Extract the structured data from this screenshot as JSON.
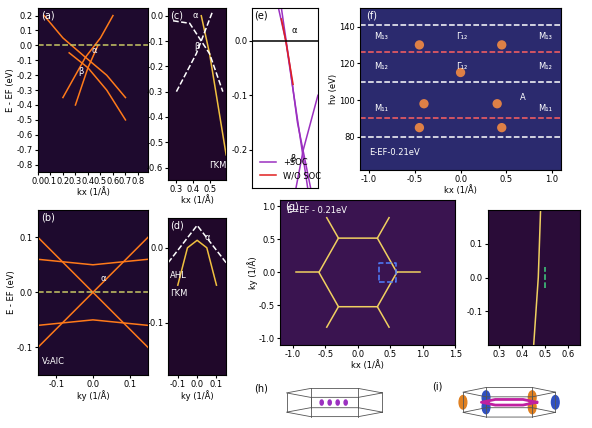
{
  "chart_data": [
    {
      "type": "line",
      "title": "(a)",
      "xlabel": "kx (1/Å)",
      "ylabel": "E - EF (eV)",
      "xlim": [
        0,
        0.88
      ],
      "ylim": [
        -0.85,
        0.25
      ],
      "xticks": [
        0.0,
        0.1,
        0.2,
        0.3,
        0.4,
        0.5,
        0.6,
        0.7,
        0.8
      ],
      "yticks": [
        -0.8,
        -0.7,
        -0.6,
        -0.5,
        -0.4,
        -0.3,
        -0.2,
        -0.1,
        0.0,
        0.1,
        0.2
      ],
      "series": [
        {
          "x": [
            0.05,
            0.2,
            0.38,
            0.55,
            0.7
          ],
          "values": [
            0.2,
            0.05,
            -0.08,
            -0.2,
            -0.35
          ],
          "color": "#ff7a1a",
          "line_style": "solid"
        },
        {
          "x": [
            0.2,
            0.38,
            0.5,
            0.6
          ],
          "values": [
            -0.35,
            -0.08,
            0.05,
            0.2
          ],
          "color": "#ff7a1a",
          "line_style": "solid"
        },
        {
          "x": [
            0.25,
            0.4,
            0.55,
            0.7
          ],
          "values": [
            -0.05,
            -0.15,
            -0.3,
            -0.5
          ],
          "color": "#ff7a1a",
          "line_style": "solid"
        },
        {
          "x": [
            0.3,
            0.4,
            0.48
          ],
          "values": [
            -0.4,
            -0.15,
            0.0
          ],
          "color": "#ff7a1a",
          "line_style": "solid"
        },
        {
          "x": [
            0.0,
            0.88
          ],
          "values": [
            0.0,
            0.0
          ],
          "color": "#c8c864",
          "line_style": "dashed"
        }
      ],
      "annotations": [
        {
          "text": "α",
          "x": 0.43,
          "y": -0.05
        },
        {
          "text": "β",
          "x": 0.32,
          "y": -0.19
        }
      ]
    },
    {
      "type": "line",
      "title": "(b)",
      "xlabel": "ky (1/Å)",
      "ylabel": "E - EF (eV)",
      "xlim": [
        -0.15,
        0.15
      ],
      "ylim": [
        -0.15,
        0.15
      ],
      "xticks": [
        -0.1,
        0.0,
        0.1
      ],
      "yticks": [
        -0.1,
        0.0,
        0.1
      ],
      "series": [
        {
          "x": [
            -0.15,
            0.0,
            0.15
          ],
          "values": [
            0.1,
            0.0,
            -0.1
          ],
          "color": "#ff7a1a",
          "line_style": "solid"
        },
        {
          "x": [
            -0.15,
            0.0,
            0.15
          ],
          "values": [
            -0.1,
            0.0,
            0.1
          ],
          "color": "#ff7a1a",
          "line_style": "solid"
        },
        {
          "x": [
            -0.15,
            0.0,
            0.15
          ],
          "values": [
            0.06,
            0.05,
            0.06
          ],
          "color": "#ff7a1a",
          "line_style": "solid"
        },
        {
          "x": [
            -0.15,
            0.0,
            0.15
          ],
          "values": [
            -0.06,
            -0.05,
            -0.06
          ],
          "color": "#ff7a1a",
          "line_style": "solid"
        },
        {
          "x": [
            -0.15,
            0.15
          ],
          "values": [
            0.0,
            0.0
          ],
          "color": "#c8c864",
          "line_style": "dashed"
        }
      ],
      "annotations": [
        {
          "text": "α",
          "x": 0.02,
          "y": 0.02
        },
        {
          "text": "V₂AlC",
          "x": -0.14,
          "y": -0.13
        }
      ]
    },
    {
      "type": "line",
      "title": "(c)",
      "xlabel": "kx (1/Å)",
      "xlim": [
        0.25,
        0.6
      ],
      "ylim": [
        -0.65,
        0.03
      ],
      "xticks": [
        0.3,
        0.4,
        0.5
      ],
      "yticks": [
        0.0,
        -0.1,
        -0.2,
        -0.3,
        -0.4,
        -0.5,
        -0.6
      ],
      "series": [
        {
          "x": [
            0.45,
            0.5,
            0.55,
            0.6
          ],
          "values": [
            0.0,
            -0.15,
            -0.35,
            -0.55
          ],
          "color": "#f0c040",
          "line_style": "solid"
        },
        {
          "x": [
            0.28,
            0.38,
            0.5,
            0.58
          ],
          "values": [
            -0.02,
            -0.03,
            -0.15,
            -0.3
          ],
          "color": "#ffffff",
          "line_style": "dashed"
        },
        {
          "x": [
            0.3,
            0.42,
            0.52
          ],
          "values": [
            -0.3,
            -0.15,
            0.02
          ],
          "color": "#ffffff",
          "line_style": "dashed"
        }
      ],
      "annotations": [
        {
          "text": "α",
          "x": 0.4,
          "y": -0.01
        },
        {
          "text": "β",
          "x": 0.41,
          "y": -0.13
        },
        {
          "text": "ΓKM",
          "x": 0.5,
          "y": -0.6
        }
      ]
    },
    {
      "type": "line",
      "title": "(d)",
      "xlabel": "ky (1/Å)",
      "xlim": [
        -0.15,
        0.15
      ],
      "ylim": [
        -0.17,
        0.04
      ],
      "xticks": [
        -0.1,
        0.0,
        0.1
      ],
      "yticks": [
        0.0,
        -0.1
      ],
      "series": [
        {
          "x": [
            -0.1,
            -0.05,
            0.0,
            0.05,
            0.1
          ],
          "values": [
            -0.05,
            0.0,
            0.01,
            0.0,
            -0.05
          ],
          "color": "#f0c040",
          "line_style": "solid"
        },
        {
          "x": [
            -0.15,
            0.0,
            0.15
          ],
          "values": [
            -0.02,
            0.03,
            -0.02
          ],
          "color": "#ffffff",
          "line_style": "dashed"
        }
      ],
      "annotations": [
        {
          "text": "α",
          "x": 0.04,
          "y": 0.01
        },
        {
          "text": "AHL",
          "x": -0.14,
          "y": -0.04
        },
        {
          "text": "ΓKM",
          "x": -0.14,
          "y": -0.065
        }
      ]
    },
    {
      "type": "line",
      "title": "(e)",
      "tick_labels": "y",
      "legend": "lower left",
      "xlim": [
        -0.2,
        0.25
      ],
      "ylim": [
        -0.27,
        0.06
      ],
      "yticks": [
        0.0,
        -0.1,
        -0.2
      ],
      "series": [
        {
          "name": "+SOC",
          "x": [
            -0.02,
            0.03,
            0.08,
            0.13,
            0.18
          ],
          "values": [
            0.06,
            0.0,
            -0.09,
            -0.18,
            -0.27
          ],
          "color": "#9b30c0",
          "line_style": "solid"
        },
        {
          "x": [
            0.0,
            0.06,
            0.11,
            0.2
          ],
          "values": [
            0.06,
            -0.05,
            -0.15,
            -0.27
          ],
          "color": "#9b30c0",
          "line_style": "solid"
        },
        {
          "x": [
            0.1,
            0.15,
            0.25
          ],
          "values": [
            -0.27,
            -0.2,
            -0.1
          ],
          "color": "#9b30c0",
          "line_style": "solid"
        },
        {
          "name": "W/O SOC",
          "x": [
            0.0,
            0.03,
            0.08
          ],
          "values": [
            0.04,
            0.0,
            -0.08
          ],
          "color": "#e02020",
          "line_style": "solid"
        },
        {
          "x": [
            -0.2,
            0.25
          ],
          "values": [
            0.0,
            0.0
          ],
          "color": "#000000",
          "line_style": "solid"
        }
      ],
      "annotations": [
        {
          "text": "α",
          "x": 0.07,
          "y": 0.015
        },
        {
          "text": "β",
          "x": 0.06,
          "y": -0.22
        }
      ]
    },
    {
      "type": "scatter",
      "title": "(f)",
      "xlabel": "kx (1/Å)",
      "ylabel": "hν (eV)",
      "xlim": [
        -1.1,
        1.1
      ],
      "ylim": [
        62,
        150
      ],
      "xticks": [
        -1.0,
        -0.5,
        0.0,
        0.5,
        1.0
      ],
      "yticks": [
        80,
        100,
        120,
        140
      ],
      "series": [
        {
          "type": "scatter",
          "x": [
            -0.45,
            0.45,
            -0.4,
            0.4,
            -0.45,
            0.45,
            0.0
          ],
          "values": [
            130,
            130,
            98,
            98,
            85,
            85,
            115
          ],
          "color": "#ff9040"
        },
        {
          "x": [
            -1.1,
            1.1
          ],
          "values": [
            141,
            141
          ],
          "color": "#ffffff",
          "line_style": "dashed"
        },
        {
          "x": [
            -1.1,
            1.1
          ],
          "values": [
            126,
            126
          ],
          "color": "#ff6060",
          "line_style": "dashed"
        },
        {
          "x": [
            -1.1,
            1.1
          ],
          "values": [
            110,
            110
          ],
          "color": "#ffffff",
          "line_style": "dashed"
        },
        {
          "x": [
            -1.1,
            1.1
          ],
          "values": [
            90,
            90
          ],
          "color": "#ff6060",
          "line_style": "dashed"
        },
        {
          "x": [
            -1.1,
            1.1
          ],
          "values": [
            80,
            80
          ],
          "color": "#ffffff",
          "line_style": "dashed"
        }
      ],
      "annotations": [
        {
          "text": "M₁₃",
          "x": -0.95,
          "y": 133
        },
        {
          "text": "Γ₁₂",
          "x": -0.05,
          "y": 133
        },
        {
          "text": "M₁₃",
          "x": 0.85,
          "y": 133
        },
        {
          "text": "M₁₂",
          "x": -0.95,
          "y": 117
        },
        {
          "text": "Γ₁₂",
          "x": -0.05,
          "y": 117
        },
        {
          "text": "M₁₂",
          "x": 0.85,
          "y": 117
        },
        {
          "text": "M₁₁",
          "x": -0.95,
          "y": 94
        },
        {
          "text": "M₁₁",
          "x": 0.85,
          "y": 94
        },
        {
          "text": "A",
          "x": 0.65,
          "y": 100
        },
        {
          "text": "E-EF-0.21eV",
          "x": -1.0,
          "y": 70
        }
      ]
    },
    {
      "type": "line",
      "title": "(g)",
      "xlabel": "kx (1/Å)",
      "ylabel": "ky (1/Å)",
      "xlim": [
        -1.2,
        1.5
      ],
      "ylim": [
        -1.1,
        1.1
      ],
      "xticks": [
        -1.0,
        -0.5,
        0.0,
        0.5,
        1.0,
        1.5
      ],
      "yticks": [
        -1.0,
        -0.5,
        0.0,
        0.5,
        1.0
      ],
      "series": [
        {
          "x": [
            0.6,
            0.3,
            -0.3,
            -0.6,
            -0.3,
            0.3,
            0.6
          ],
          "values": [
            0.0,
            0.52,
            0.52,
            0.0,
            -0.52,
            -0.52,
            0.0
          ],
          "color": "#f0d060",
          "line_style": "solid"
        },
        {
          "x": [
            0.6,
            0.95
          ],
          "values": [
            0.0,
            0.0
          ],
          "color": "#f0d060",
          "line_style": "solid"
        },
        {
          "x": [
            -0.6,
            -0.95
          ],
          "values": [
            0.0,
            0.0
          ],
          "color": "#f0d060",
          "line_style": "solid"
        },
        {
          "x": [
            0.3,
            0.48
          ],
          "values": [
            0.52,
            0.83
          ],
          "color": "#f0d060",
          "line_style": "solid"
        },
        {
          "x": [
            -0.3,
            -0.48
          ],
          "values": [
            0.52,
            0.83
          ],
          "color": "#f0d060",
          "line_style": "solid"
        },
        {
          "x": [
            0.3,
            0.48
          ],
          "values": [
            -0.52,
            -0.83
          ],
          "color": "#f0d060",
          "line_style": "solid"
        },
        {
          "x": [
            -0.3,
            -0.48
          ],
          "values": [
            -0.52,
            -0.83
          ],
          "color": "#f0d060",
          "line_style": "solid"
        },
        {
          "x": [
            0.33,
            0.58,
            0.58,
            0.33,
            0.33
          ],
          "values": [
            -0.15,
            -0.15,
            0.15,
            0.15,
            -0.15
          ],
          "color": "#5080ff",
          "line_style": "dashed"
        }
      ],
      "annotations": [
        {
          "text": "E=EF - 0.21eV",
          "x": -1.1,
          "y": 0.9
        }
      ]
    },
    {
      "type": "line",
      "xlim": [
        0.25,
        0.65
      ],
      "ylim": [
        -0.2,
        0.2
      ],
      "xticks": [
        0.3,
        0.4,
        0.5,
        0.6
      ],
      "yticks": [
        -0.1,
        0.0,
        0.1
      ],
      "series": [
        {
          "x": [
            0.45,
            0.47,
            0.48
          ],
          "values": [
            -0.2,
            0.0,
            0.2
          ],
          "color": "#f0d060",
          "line_style": "solid"
        },
        {
          "x": [
            0.5,
            0.5
          ],
          "values": [
            -0.03,
            0.03
          ],
          "color": "#40d080",
          "line_style": "dashed"
        }
      ]
    },
    {
      "type": "diagram",
      "title": "(h)"
    },
    {
      "type": "diagram",
      "title": "(i)"
    }
  ]
}
